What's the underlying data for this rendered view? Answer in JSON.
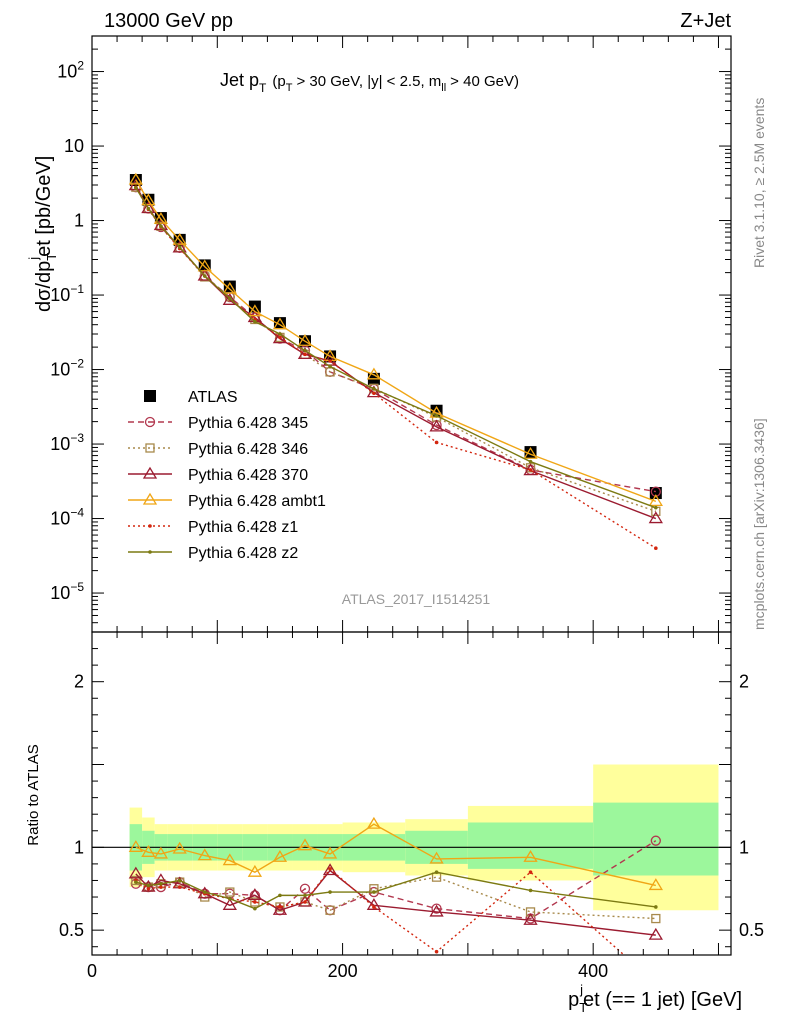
{
  "header": {
    "energy_label": "13000 GeV pp",
    "process_label": "Z+Jet"
  },
  "side_labels": {
    "rivet": "Rivet 3.1.10, ≥ 2.5M events",
    "mcplots": "mcplots.cern.ch [arXiv:1306.3436]"
  },
  "chart_data": [
    {
      "panel": "main",
      "type": "scatter",
      "title": "Jet p_T (p_T > 30 GeV, |y| < 2.5, m_ll > 40 GeV)",
      "title_parts": {
        "main": "Jet p",
        "main_sub": "T",
        "cut_open": "(p",
        "cut_sub1": "T",
        "cut_mid": "> 30 GeV, |y| < 2.5, m",
        "cut_sub2": "ll",
        "cut_close": "> 40 GeV)"
      },
      "ylabel": "dσ/dp_T^j et [pb/GeV]",
      "ylabel_parts": {
        "a": "dσ/dp",
        "sub": "T",
        "sup": "j",
        "b": "et [pb/GeV]"
      },
      "xlabel": "",
      "xlim": [
        0,
        510
      ],
      "ylim": [
        3e-06,
        300
      ],
      "log_y": true,
      "y_tick_labels": [
        {
          "v": 100,
          "base": "10",
          "exp": "2"
        },
        {
          "v": 10,
          "base": "10",
          "exp": ""
        },
        {
          "v": 1,
          "base": "1",
          "exp": ""
        },
        {
          "v": 0.1,
          "base": "10",
          "exp": "−1"
        },
        {
          "v": 0.01,
          "base": "10",
          "exp": "−2"
        },
        {
          "v": 0.001,
          "base": "10",
          "exp": "−3"
        },
        {
          "v": 0.0001,
          "base": "10",
          "exp": "−4"
        },
        {
          "v": 1e-05,
          "base": "10",
          "exp": "−5"
        }
      ],
      "watermark": "ATLAS_2017_I1514251",
      "x": [
        35,
        45,
        55,
        70,
        90,
        110,
        130,
        150,
        170,
        190,
        225,
        275,
        350,
        450
      ],
      "series": [
        {
          "name": "ATLAS",
          "color": "#000000",
          "marker": "square-filled",
          "line": "none",
          "values": [
            3.5,
            1.9,
            1.08,
            0.55,
            0.25,
            0.13,
            0.07,
            0.042,
            0.024,
            0.015,
            0.0075,
            0.0028,
            0.00078,
            0.00022
          ]
        },
        {
          "name": "Pythia 6.428 345",
          "color": "#b2384f",
          "marker": "circle-open",
          "line": "dashed",
          "values": [
            2.8,
            1.45,
            0.82,
            0.43,
            0.18,
            0.094,
            0.05,
            0.026,
            0.018,
            0.0093,
            0.0055,
            0.0018,
            0.00045,
            0.00023
          ]
        },
        {
          "name": "Pythia 6.428 346",
          "color": "#a88a4c",
          "marker": "square-open",
          "line": "dotted",
          "values": [
            2.8,
            1.45,
            0.84,
            0.43,
            0.175,
            0.095,
            0.047,
            0.027,
            0.016,
            0.0093,
            0.0056,
            0.0023,
            0.00048,
            0.000125
          ]
        },
        {
          "name": "Pythia 6.428 370",
          "color": "#9b1b30",
          "marker": "triangle-open",
          "line": "solid",
          "values": [
            2.95,
            1.45,
            0.86,
            0.43,
            0.18,
            0.085,
            0.05,
            0.026,
            0.016,
            0.013,
            0.0049,
            0.0017,
            0.00044,
            0.0001
          ]
        },
        {
          "name": "Pythia 6.428 ambt1",
          "color": "#f0a616",
          "marker": "triangle-open",
          "line": "solid",
          "values": [
            3.5,
            1.85,
            1.04,
            0.545,
            0.24,
            0.12,
            0.06,
            0.04,
            0.024,
            0.015,
            0.0085,
            0.0026,
            0.00073,
            0.00017
          ]
        },
        {
          "name": "Pythia 6.428 z1",
          "color": "#d3260f",
          "marker": "dot",
          "line": "dotted",
          "values": [
            2.8,
            1.42,
            0.82,
            0.42,
            0.18,
            0.09,
            0.047,
            0.027,
            0.016,
            0.013,
            0.0048,
            0.00105,
            0.00045,
            4e-05
          ]
        },
        {
          "name": "Pythia 6.428 z2",
          "color": "#7c7a12",
          "marker": "dot",
          "line": "solid",
          "values": [
            2.75,
            1.45,
            0.84,
            0.44,
            0.18,
            0.09,
            0.044,
            0.03,
            0.018,
            0.011,
            0.0055,
            0.0024,
            0.00058,
            0.00014
          ]
        }
      ]
    },
    {
      "panel": "ratio",
      "type": "line",
      "ylabel": "Ratio to ATLAS",
      "xlabel": "p_T^j et (== 1 jet) [GeV]",
      "xlabel_parts": {
        "a": "p",
        "sub": "T",
        "sup": "j",
        "b": "et (== 1 jet) [GeV]"
      },
      "xlim": [
        0,
        510
      ],
      "ylim": [
        0.35,
        2.3
      ],
      "x_tick_labels": [
        0,
        200,
        400
      ],
      "y_tick_labels": [
        0.5,
        1,
        2
      ],
      "bins": [
        [
          30,
          40
        ],
        [
          40,
          50
        ],
        [
          50,
          60
        ],
        [
          60,
          80
        ],
        [
          80,
          100
        ],
        [
          100,
          120
        ],
        [
          120,
          140
        ],
        [
          140,
          160
        ],
        [
          160,
          180
        ],
        [
          180,
          200
        ],
        [
          200,
          250
        ],
        [
          250,
          300
        ],
        [
          300,
          400
        ],
        [
          400,
          500
        ]
      ],
      "band_yellow": [
        [
          0.76,
          1.24
        ],
        [
          0.82,
          1.18
        ],
        [
          0.86,
          1.14
        ],
        [
          0.86,
          1.14
        ],
        [
          0.86,
          1.14
        ],
        [
          0.86,
          1.14
        ],
        [
          0.86,
          1.14
        ],
        [
          0.86,
          1.14
        ],
        [
          0.86,
          1.14
        ],
        [
          0.86,
          1.14
        ],
        [
          0.85,
          1.15
        ],
        [
          0.83,
          1.17
        ],
        [
          0.8,
          1.25
        ],
        [
          0.62,
          1.5
        ]
      ],
      "band_green": [
        [
          0.86,
          1.14
        ],
        [
          0.9,
          1.1
        ],
        [
          0.92,
          1.08
        ],
        [
          0.92,
          1.08
        ],
        [
          0.92,
          1.08
        ],
        [
          0.92,
          1.08
        ],
        [
          0.92,
          1.08
        ],
        [
          0.92,
          1.08
        ],
        [
          0.92,
          1.08
        ],
        [
          0.92,
          1.08
        ],
        [
          0.92,
          1.08
        ],
        [
          0.9,
          1.1
        ],
        [
          0.87,
          1.15
        ],
        [
          0.83,
          1.27
        ]
      ],
      "x": [
        35,
        45,
        55,
        70,
        90,
        110,
        130,
        150,
        170,
        190,
        225,
        275,
        350,
        450
      ],
      "series": [
        {
          "name": "Pythia 6.428 345",
          "color": "#b2384f",
          "values": [
            0.78,
            0.76,
            0.76,
            0.79,
            0.72,
            0.72,
            0.71,
            0.62,
            0.75,
            0.62,
            0.73,
            0.63,
            0.57,
            1.04
          ]
        },
        {
          "name": "Pythia 6.428 346",
          "color": "#a88a4c",
          "values": [
            0.8,
            0.76,
            0.78,
            0.79,
            0.7,
            0.73,
            0.67,
            0.64,
            0.67,
            0.62,
            0.75,
            0.82,
            0.61,
            0.57
          ]
        },
        {
          "name": "Pythia 6.428 370",
          "color": "#9b1b30",
          "values": [
            0.84,
            0.76,
            0.8,
            0.78,
            0.72,
            0.65,
            0.71,
            0.62,
            0.67,
            0.86,
            0.65,
            0.61,
            0.56,
            0.47
          ]
        },
        {
          "name": "Pythia 6.428 ambt1",
          "color": "#f0a616",
          "values": [
            1.0,
            0.97,
            0.96,
            0.99,
            0.95,
            0.92,
            0.85,
            0.94,
            1.01,
            0.96,
            1.14,
            0.93,
            0.94,
            0.77
          ]
        },
        {
          "name": "Pythia 6.428 z1",
          "color": "#d3260f",
          "values": [
            0.8,
            0.75,
            0.76,
            0.76,
            0.72,
            0.69,
            0.67,
            0.64,
            0.67,
            0.87,
            0.64,
            0.37,
            0.85,
            0.18
          ]
        },
        {
          "name": "Pythia 6.428 z2",
          "color": "#7c7a12",
          "values": [
            0.79,
            0.77,
            0.78,
            0.8,
            0.73,
            0.69,
            0.63,
            0.71,
            0.71,
            0.73,
            0.73,
            0.85,
            0.74,
            0.64
          ]
        }
      ]
    }
  ]
}
